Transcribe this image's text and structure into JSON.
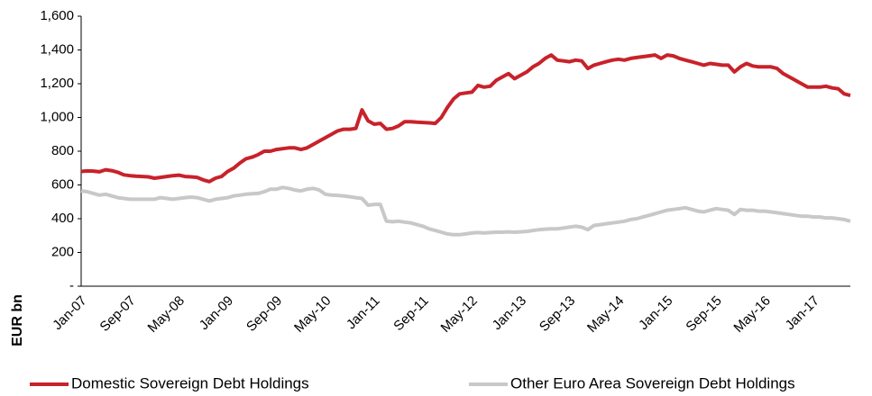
{
  "chart_data": {
    "type": "line",
    "y_label": "EUR bn",
    "categories": [
      "Jan-07",
      null,
      null,
      null,
      null,
      null,
      null,
      null,
      "Sep-07",
      null,
      null,
      null,
      null,
      null,
      null,
      null,
      "May-08",
      null,
      null,
      null,
      null,
      null,
      null,
      null,
      "Jan-09",
      null,
      null,
      null,
      null,
      null,
      null,
      null,
      "Sep-09",
      null,
      null,
      null,
      null,
      null,
      null,
      null,
      "May-10",
      null,
      null,
      null,
      null,
      null,
      null,
      null,
      "Jan-11",
      null,
      null,
      null,
      null,
      null,
      null,
      null,
      "Sep-11",
      null,
      null,
      null,
      null,
      null,
      null,
      null,
      "May-12",
      null,
      null,
      null,
      null,
      null,
      null,
      null,
      "Jan-13",
      null,
      null,
      null,
      null,
      null,
      null,
      null,
      "Sep-13",
      null,
      null,
      null,
      null,
      null,
      null,
      null,
      "May-14",
      null,
      null,
      null,
      null,
      null,
      null,
      null,
      "Jan-15",
      null,
      null,
      null,
      null,
      null,
      null,
      null,
      "Sep-15",
      null,
      null,
      null,
      null,
      null,
      null,
      null,
      "May-16",
      null,
      null,
      null,
      null,
      null,
      null,
      null,
      "Jan-17",
      null,
      null,
      null,
      null,
      null,
      null
    ],
    "series": [
      {
        "name": "Domestic Sovereign Debt Holdings",
        "color": "#c8222a",
        "values": [
          680,
          683,
          682,
          678,
          690,
          685,
          675,
          660,
          655,
          652,
          650,
          648,
          640,
          645,
          650,
          655,
          658,
          650,
          648,
          645,
          630,
          620,
          640,
          650,
          680,
          700,
          730,
          755,
          765,
          780,
          800,
          800,
          810,
          815,
          820,
          820,
          810,
          820,
          840,
          860,
          880,
          900,
          920,
          930,
          930,
          935,
          1045,
          980,
          960,
          965,
          930,
          935,
          950,
          975,
          975,
          972,
          970,
          968,
          965,
          1000,
          1060,
          1110,
          1140,
          1145,
          1150,
          1190,
          1180,
          1185,
          1220,
          1240,
          1260,
          1230,
          1250,
          1270,
          1300,
          1320,
          1350,
          1370,
          1340,
          1335,
          1330,
          1340,
          1335,
          1290,
          1310,
          1320,
          1330,
          1340,
          1345,
          1340,
          1350,
          1355,
          1360,
          1365,
          1370,
          1350,
          1370,
          1365,
          1350,
          1340,
          1330,
          1320,
          1310,
          1320,
          1315,
          1310,
          1310,
          1270,
          1300,
          1320,
          1305,
          1300,
          1300,
          1300,
          1290,
          1260,
          1240,
          1220,
          1200,
          1180,
          1180,
          1180,
          1185,
          1175,
          1170,
          1140,
          1130
        ]
      },
      {
        "name": "Other Euro Area Sovereign Debt Holdings",
        "color": "#c8c8c8",
        "values": [
          565,
          560,
          550,
          540,
          545,
          535,
          525,
          520,
          515,
          515,
          515,
          515,
          515,
          525,
          520,
          515,
          520,
          525,
          528,
          525,
          515,
          505,
          515,
          520,
          525,
          535,
          540,
          545,
          548,
          550,
          560,
          575,
          575,
          585,
          580,
          570,
          565,
          575,
          580,
          570,
          545,
          540,
          538,
          535,
          530,
          525,
          520,
          480,
          485,
          485,
          385,
          382,
          385,
          380,
          375,
          365,
          355,
          340,
          330,
          320,
          310,
          305,
          305,
          310,
          315,
          318,
          315,
          318,
          320,
          320,
          322,
          320,
          322,
          325,
          330,
          335,
          338,
          340,
          340,
          345,
          350,
          355,
          350,
          335,
          360,
          365,
          370,
          375,
          380,
          385,
          395,
          400,
          410,
          420,
          430,
          440,
          450,
          455,
          460,
          465,
          455,
          445,
          440,
          450,
          460,
          455,
          450,
          425,
          455,
          450,
          450,
          445,
          445,
          440,
          435,
          430,
          425,
          420,
          415,
          415,
          410,
          410,
          405,
          405,
          400,
          395,
          385
        ]
      }
    ],
    "ylim": [
      0,
      1600
    ],
    "yticks": [
      {
        "value": 0,
        "label": "-"
      },
      200,
      400,
      600,
      800,
      {
        "value": 1000,
        "label": "1,000"
      },
      {
        "value": 1200,
        "label": "1,200"
      },
      {
        "value": 1400,
        "label": "1,400"
      },
      {
        "value": 1600,
        "label": "1,600"
      }
    ],
    "legend": "bottom",
    "grid": false
  }
}
